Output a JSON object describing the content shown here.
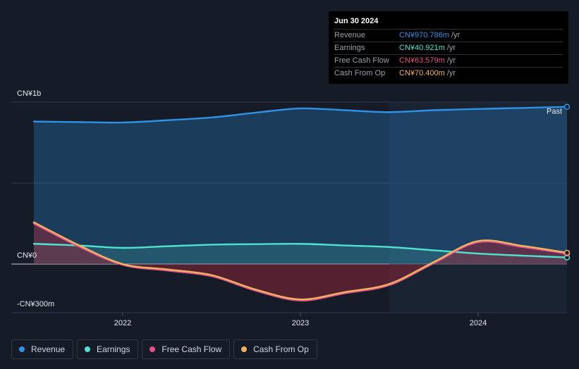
{
  "tooltip": {
    "date": "Jun 30 2024",
    "rows": [
      {
        "label": "Revenue",
        "value": "CN¥970.786m",
        "unit": "/yr",
        "color": "#2e93e6"
      },
      {
        "label": "Earnings",
        "value": "CN¥40.921m",
        "unit": "/yr",
        "color": "#4fe3cf"
      },
      {
        "label": "Free Cash Flow",
        "value": "CN¥63.579m",
        "unit": "/yr",
        "color": "#e0508e"
      },
      {
        "label": "Cash From Op",
        "value": "CN¥70.400m",
        "unit": "/yr",
        "color": "#f2b35f"
      }
    ]
  },
  "past_label": "Past",
  "legend": [
    {
      "label": "Revenue",
      "color": "#2e93e6"
    },
    {
      "label": "Earnings",
      "color": "#4fe3cf"
    },
    {
      "label": "Free Cash Flow",
      "color": "#e0508e"
    },
    {
      "label": "Cash From Op",
      "color": "#f2b35f"
    }
  ],
  "chart_data": {
    "type": "area",
    "y_unit": "CN¥ million",
    "ylim": [
      -300,
      1000
    ],
    "y_tick_labels": [
      {
        "value": 1000,
        "label": "CN¥1b"
      },
      {
        "value": 0,
        "label": "CN¥0"
      },
      {
        "value": -300,
        "label": "-CN¥300m"
      }
    ],
    "x_ticks": [
      2022,
      2023,
      2024
    ],
    "x_range": [
      2021.5,
      2024.5
    ],
    "past_region_start": 2023.5,
    "series": [
      {
        "name": "Revenue",
        "color": "#2e93e6",
        "points": [
          [
            2021.5,
            880
          ],
          [
            2021.75,
            877
          ],
          [
            2022.0,
            874
          ],
          [
            2022.25,
            888
          ],
          [
            2022.5,
            905
          ],
          [
            2022.75,
            935
          ],
          [
            2023.0,
            961
          ],
          [
            2023.25,
            950
          ],
          [
            2023.5,
            938
          ],
          [
            2023.75,
            950
          ],
          [
            2024.0,
            958
          ],
          [
            2024.25,
            964
          ],
          [
            2024.5,
            971
          ]
        ]
      },
      {
        "name": "Earnings",
        "color": "#4fe3cf",
        "points": [
          [
            2021.5,
            125
          ],
          [
            2021.75,
            115
          ],
          [
            2022.0,
            100
          ],
          [
            2022.25,
            110
          ],
          [
            2022.5,
            120
          ],
          [
            2022.75,
            123
          ],
          [
            2023.0,
            125
          ],
          [
            2023.25,
            115
          ],
          [
            2023.5,
            105
          ],
          [
            2023.75,
            85
          ],
          [
            2024.0,
            65
          ],
          [
            2024.25,
            52
          ],
          [
            2024.5,
            41
          ]
        ]
      },
      {
        "name": "Free Cash Flow",
        "color": "#e0508e",
        "points": [
          [
            2021.5,
            250
          ],
          [
            2021.75,
            110
          ],
          [
            2022.0,
            -5
          ],
          [
            2022.25,
            -40
          ],
          [
            2022.5,
            -75
          ],
          [
            2022.75,
            -165
          ],
          [
            2023.0,
            -225
          ],
          [
            2023.25,
            -180
          ],
          [
            2023.5,
            -130
          ],
          [
            2023.75,
            5
          ],
          [
            2024.0,
            135
          ],
          [
            2024.25,
            105
          ],
          [
            2024.5,
            64
          ]
        ]
      },
      {
        "name": "Cash From Op",
        "color": "#f2b35f",
        "points": [
          [
            2021.5,
            258
          ],
          [
            2021.75,
            118
          ],
          [
            2022.0,
            0
          ],
          [
            2022.25,
            -33
          ],
          [
            2022.5,
            -68
          ],
          [
            2022.75,
            -158
          ],
          [
            2023.0,
            -218
          ],
          [
            2023.25,
            -173
          ],
          [
            2023.5,
            -123
          ],
          [
            2023.75,
            12
          ],
          [
            2024.0,
            142
          ],
          [
            2024.25,
            112
          ],
          [
            2024.5,
            70
          ]
        ]
      }
    ]
  }
}
